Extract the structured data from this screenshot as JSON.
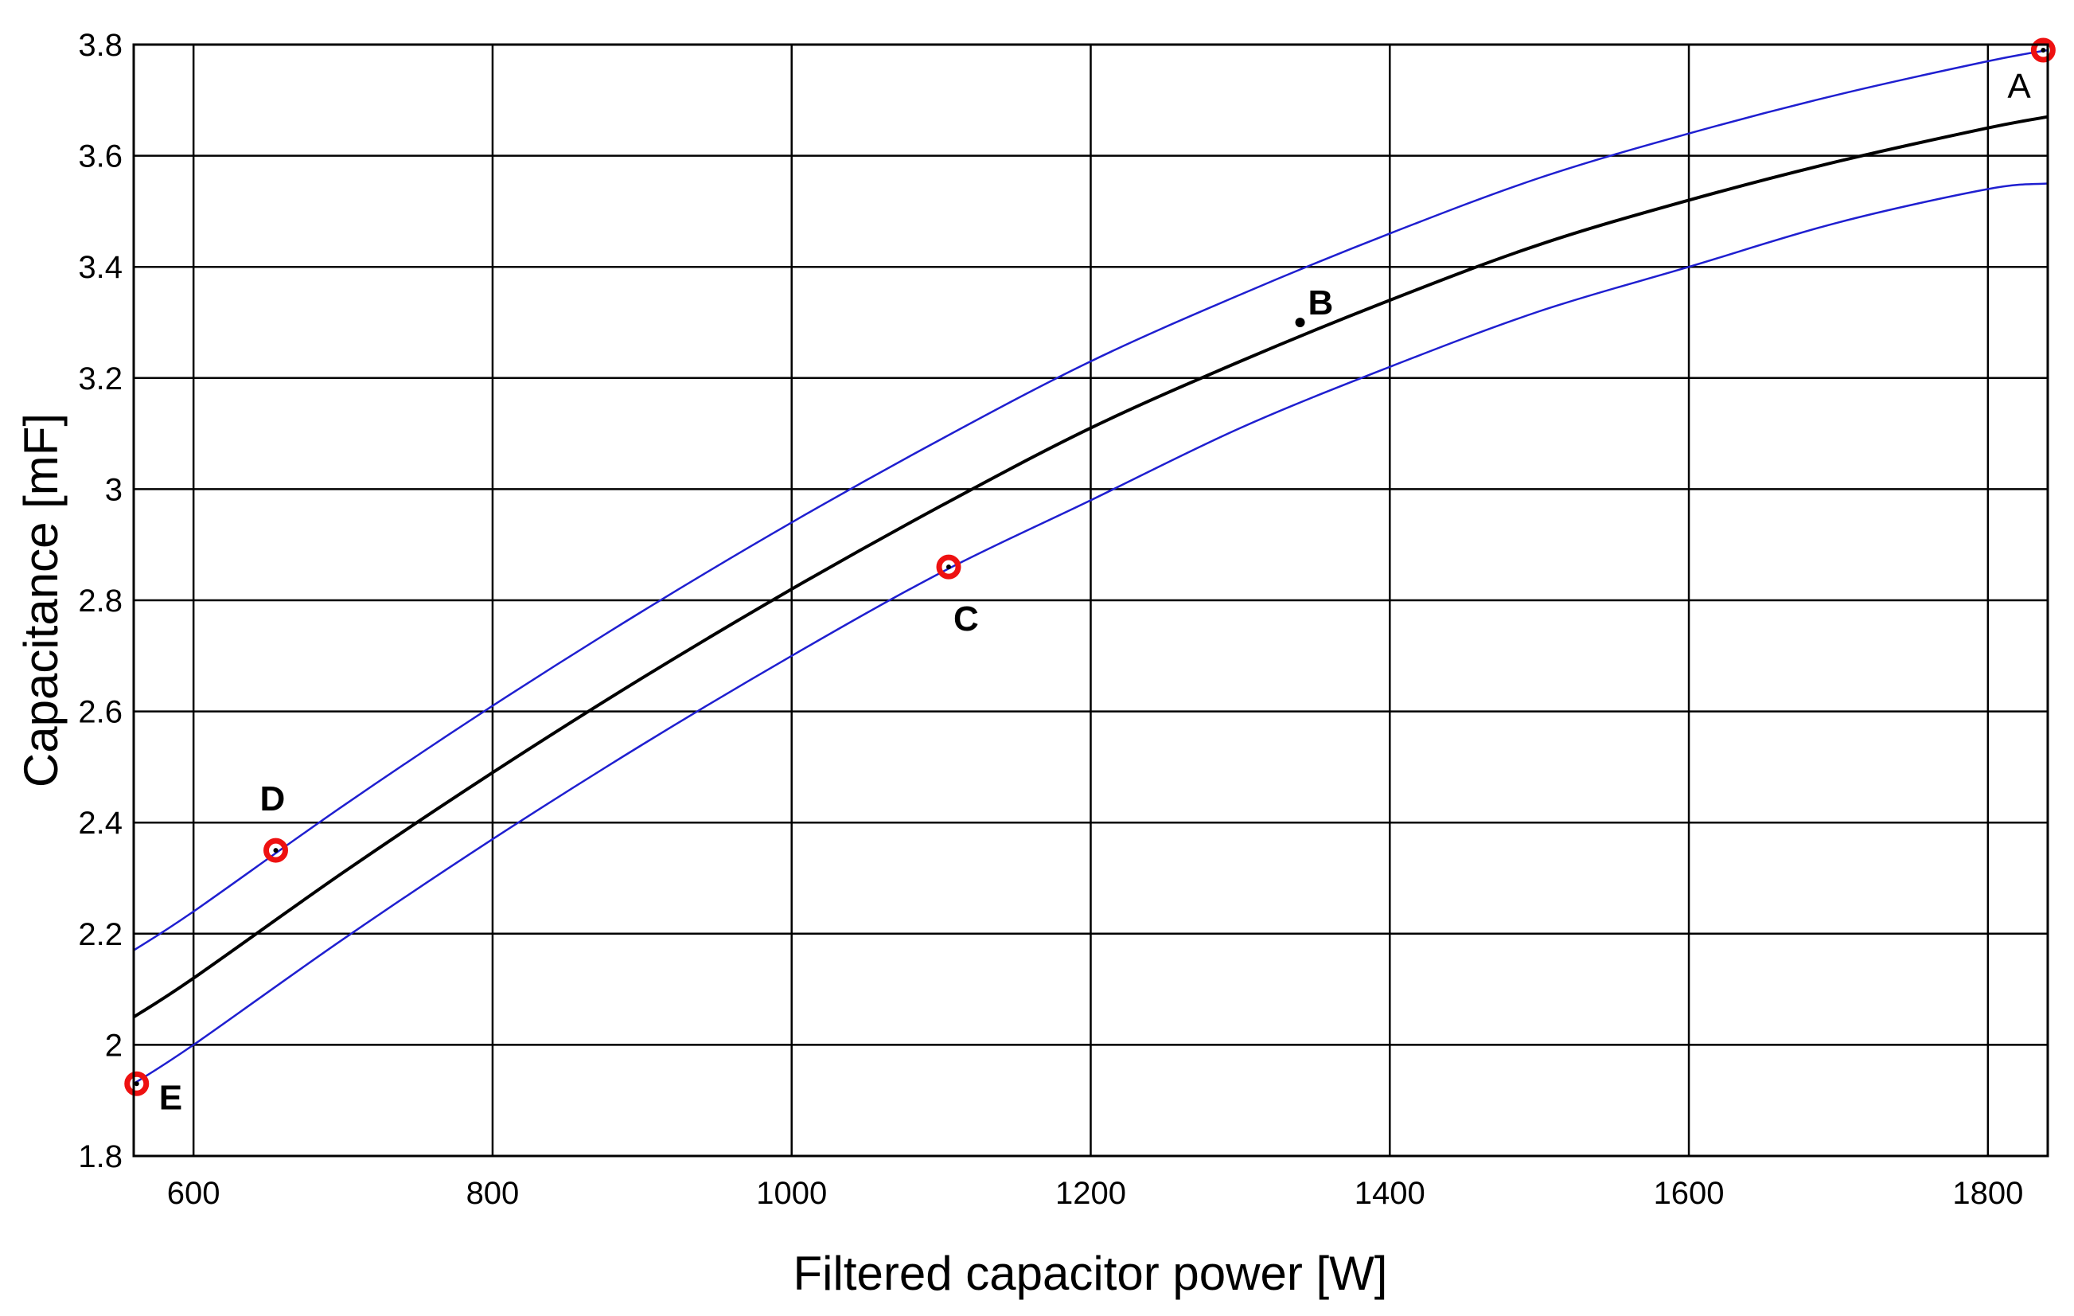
{
  "chart_data": {
    "type": "line",
    "title": "",
    "xlabel": "Filtered capacitor power [W]",
    "ylabel": "Capacitance [mF]",
    "xlim": [
      560,
      1840
    ],
    "ylim": [
      1.8,
      3.8
    ],
    "x_ticks": [
      600,
      800,
      1000,
      1200,
      1400,
      1600,
      1800
    ],
    "x_tick_labels": [
      "600",
      "800",
      "1000",
      "1200",
      "1400",
      "1600",
      "1800"
    ],
    "y_ticks": [
      1.8,
      2,
      2.2,
      2.4,
      2.6,
      2.8,
      3,
      3.2,
      3.4,
      3.6,
      3.8
    ],
    "y_tick_labels": [
      "1.8",
      "2",
      "2.2",
      "2.4",
      "2.6",
      "2.8",
      "3",
      "3.2",
      "3.4",
      "3.6",
      "3.8"
    ],
    "grid": true,
    "colors": {
      "nominal": "#000000",
      "bounds": "#1f1fd0",
      "markers": "#ee1111"
    },
    "series": [
      {
        "key": "upper",
        "x": [
          560,
          600,
          700,
          800,
          900,
          1000,
          1100,
          1200,
          1300,
          1400,
          1500,
          1600,
          1700,
          1800,
          1840
        ],
        "values": [
          2.17,
          2.24,
          2.43,
          2.61,
          2.78,
          2.94,
          3.09,
          3.23,
          3.35,
          3.46,
          3.56,
          3.64,
          3.71,
          3.77,
          3.79
        ]
      },
      {
        "key": "nominal",
        "x": [
          560,
          600,
          700,
          800,
          900,
          1000,
          1100,
          1200,
          1300,
          1400,
          1500,
          1600,
          1700,
          1800,
          1840
        ],
        "values": [
          2.05,
          2.12,
          2.31,
          2.49,
          2.66,
          2.82,
          2.97,
          3.11,
          3.23,
          3.34,
          3.44,
          3.52,
          3.59,
          3.65,
          3.67
        ]
      },
      {
        "key": "lower",
        "x": [
          560,
          600,
          700,
          800,
          900,
          1000,
          1100,
          1200,
          1300,
          1400,
          1500,
          1600,
          1700,
          1800,
          1840
        ],
        "values": [
          1.93,
          2.0,
          2.19,
          2.37,
          2.54,
          2.7,
          2.85,
          2.98,
          3.11,
          3.22,
          3.32,
          3.4,
          3.48,
          3.54,
          3.55
        ]
      }
    ],
    "points": [
      {
        "label": "A",
        "x": 1837,
        "y": 3.79,
        "marker": "circle"
      },
      {
        "label": "B",
        "x": 1340,
        "y": 3.3,
        "marker": "dot"
      },
      {
        "label": "C",
        "x": 1105,
        "y": 2.86,
        "marker": "circle"
      },
      {
        "label": "D",
        "x": 655,
        "y": 2.35,
        "marker": "circle"
      },
      {
        "label": "E",
        "x": 562,
        "y": 1.93,
        "marker": "circle"
      }
    ]
  }
}
